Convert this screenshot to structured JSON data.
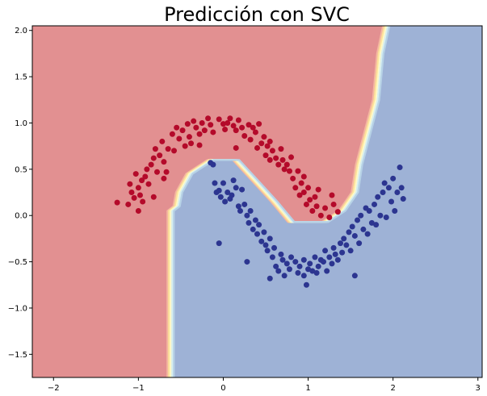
{
  "chart_data": {
    "type": "scatter",
    "title": "Predicción con SVC",
    "xlabel": "",
    "ylabel": "",
    "xlim": [
      -2.25,
      3.05
    ],
    "ylim": [
      -1.75,
      2.05
    ],
    "grid": false,
    "xticks": [
      -2,
      -1,
      0,
      1,
      2,
      3
    ],
    "yticks": [
      -1.5,
      -1.0,
      -0.5,
      0.0,
      0.5,
      1.0,
      1.5,
      2.0
    ],
    "xtick_labels": [
      "−2",
      "−1",
      "0",
      "1",
      "2",
      "3"
    ],
    "ytick_labels": [
      "−1.5",
      "−1.0",
      "−0.5",
      "0.0",
      "0.5",
      "1.0",
      "1.5",
      "2.0"
    ],
    "background": {
      "type": "decision_regions",
      "class_colors": {
        "red": "#e29091",
        "blue": "#9eb2d6"
      },
      "boundary_band_colors": [
        "#f4b8a0",
        "#fde39a",
        "#fff9c8",
        "#d6eef0",
        "#b7d2e6"
      ],
      "boundary": [
        [
          -0.62,
          -1.75
        ],
        [
          -0.62,
          0.05
        ],
        [
          -0.55,
          0.1
        ],
        [
          -0.52,
          0.25
        ],
        [
          -0.4,
          0.45
        ],
        [
          -0.15,
          0.6
        ],
        [
          0.15,
          0.6
        ],
        [
          0.4,
          0.35
        ],
        [
          0.6,
          0.15
        ],
        [
          0.8,
          -0.07
        ],
        [
          1.2,
          -0.07
        ],
        [
          1.4,
          0.05
        ],
        [
          1.55,
          0.25
        ],
        [
          1.6,
          0.55
        ],
        [
          1.7,
          0.9
        ],
        [
          1.8,
          1.25
        ],
        [
          1.85,
          1.75
        ],
        [
          1.92,
          2.05
        ]
      ]
    },
    "series": [
      {
        "color": "#b40a2a",
        "points": [
          [
            -1.25,
            0.14
          ],
          [
            -1.12,
            0.12
          ],
          [
            -1.1,
            0.34
          ],
          [
            -1.08,
            0.25
          ],
          [
            -1.05,
            0.19
          ],
          [
            -1.03,
            0.45
          ],
          [
            -1.0,
            0.3
          ],
          [
            -0.98,
            0.22
          ],
          [
            -0.96,
            0.38
          ],
          [
            -0.92,
            0.42
          ],
          [
            -0.9,
            0.5
          ],
          [
            -0.88,
            0.34
          ],
          [
            -0.85,
            0.55
          ],
          [
            -0.82,
            0.62
          ],
          [
            -0.8,
            0.72
          ],
          [
            -0.78,
            0.47
          ],
          [
            -0.75,
            0.65
          ],
          [
            -0.72,
            0.8
          ],
          [
            -0.7,
            0.58
          ],
          [
            -0.67,
            0.47
          ],
          [
            -0.65,
            0.72
          ],
          [
            -0.6,
            0.88
          ],
          [
            -0.58,
            0.7
          ],
          [
            -0.55,
            0.95
          ],
          [
            -0.52,
            0.83
          ],
          [
            -0.48,
            0.92
          ],
          [
            -0.45,
            0.75
          ],
          [
            -0.42,
            0.99
          ],
          [
            -0.4,
            0.85
          ],
          [
            -0.38,
            0.78
          ],
          [
            -0.35,
            1.02
          ],
          [
            -0.32,
            0.95
          ],
          [
            -0.28,
            0.88
          ],
          [
            -0.25,
            1.0
          ],
          [
            -0.22,
            0.92
          ],
          [
            -0.18,
            1.05
          ],
          [
            -0.15,
            0.98
          ],
          [
            -0.12,
            0.9
          ],
          [
            -0.05,
            1.04
          ],
          [
            0.0,
            0.99
          ],
          [
            0.02,
            0.93
          ],
          [
            0.05,
            1.0
          ],
          [
            0.08,
            1.05
          ],
          [
            0.12,
            0.97
          ],
          [
            0.15,
            0.92
          ],
          [
            0.18,
            1.03
          ],
          [
            0.22,
            0.95
          ],
          [
            0.25,
            0.86
          ],
          [
            0.3,
            0.98
          ],
          [
            0.32,
            0.82
          ],
          [
            0.35,
            0.95
          ],
          [
            0.38,
            0.9
          ],
          [
            0.4,
            0.73
          ],
          [
            0.42,
            0.99
          ],
          [
            0.45,
            0.78
          ],
          [
            0.48,
            0.85
          ],
          [
            0.5,
            0.65
          ],
          [
            0.52,
            0.75
          ],
          [
            0.55,
            0.8
          ],
          [
            0.58,
            0.7
          ],
          [
            0.62,
            0.62
          ],
          [
            0.65,
            0.55
          ],
          [
            0.68,
            0.72
          ],
          [
            0.7,
            0.6
          ],
          [
            0.72,
            0.5
          ],
          [
            0.75,
            0.55
          ],
          [
            0.78,
            0.48
          ],
          [
            0.8,
            0.63
          ],
          [
            0.82,
            0.4
          ],
          [
            0.85,
            0.3
          ],
          [
            0.88,
            0.48
          ],
          [
            0.9,
            0.22
          ],
          [
            0.92,
            0.35
          ],
          [
            0.95,
            0.25
          ],
          [
            0.98,
            0.12
          ],
          [
            1.0,
            0.3
          ],
          [
            1.02,
            0.17
          ],
          [
            1.05,
            0.05
          ],
          [
            1.08,
            0.2
          ],
          [
            1.1,
            0.1
          ],
          [
            1.15,
            0.0
          ],
          [
            1.2,
            0.08
          ],
          [
            1.25,
            -0.02
          ],
          [
            1.3,
            0.12
          ],
          [
            1.35,
            0.04
          ],
          [
            -0.95,
            0.15
          ],
          [
            -0.82,
            0.2
          ],
          [
            -0.7,
            0.4
          ],
          [
            -0.28,
            0.76
          ],
          [
            0.15,
            0.73
          ],
          [
            0.55,
            0.6
          ],
          [
            0.95,
            0.42
          ],
          [
            1.12,
            0.28
          ],
          [
            1.28,
            0.22
          ],
          [
            -1.0,
            0.05
          ]
        ]
      },
      {
        "color": "#2c3590",
        "points": [
          [
            -0.15,
            0.57
          ],
          [
            -0.12,
            0.55
          ],
          [
            -0.1,
            0.35
          ],
          [
            -0.08,
            0.25
          ],
          [
            -0.05,
            0.27
          ],
          [
            -0.03,
            0.2
          ],
          [
            0.0,
            0.35
          ],
          [
            0.02,
            0.15
          ],
          [
            0.05,
            0.25
          ],
          [
            0.08,
            0.18
          ],
          [
            0.1,
            0.22
          ],
          [
            0.12,
            0.38
          ],
          [
            0.15,
            0.3
          ],
          [
            0.18,
            0.1
          ],
          [
            0.2,
            0.05
          ],
          [
            0.22,
            0.28
          ],
          [
            0.25,
            0.12
          ],
          [
            0.28,
            0.0
          ],
          [
            0.3,
            -0.08
          ],
          [
            0.32,
            0.05
          ],
          [
            0.35,
            -0.15
          ],
          [
            0.38,
            -0.05
          ],
          [
            0.4,
            -0.2
          ],
          [
            0.42,
            -0.1
          ],
          [
            0.45,
            -0.28
          ],
          [
            0.48,
            -0.18
          ],
          [
            0.5,
            -0.32
          ],
          [
            0.52,
            -0.38
          ],
          [
            0.55,
            -0.25
          ],
          [
            0.58,
            -0.45
          ],
          [
            0.6,
            -0.35
          ],
          [
            0.62,
            -0.55
          ],
          [
            0.65,
            -0.6
          ],
          [
            0.68,
            -0.42
          ],
          [
            0.7,
            -0.48
          ],
          [
            0.72,
            -0.65
          ],
          [
            0.75,
            -0.52
          ],
          [
            0.78,
            -0.58
          ],
          [
            0.8,
            -0.45
          ],
          [
            0.85,
            -0.5
          ],
          [
            0.88,
            -0.62
          ],
          [
            0.9,
            -0.55
          ],
          [
            0.95,
            -0.48
          ],
          [
            0.98,
            -0.75
          ],
          [
            1.0,
            -0.58
          ],
          [
            1.02,
            -0.52
          ],
          [
            1.05,
            -0.6
          ],
          [
            1.08,
            -0.45
          ],
          [
            1.1,
            -0.62
          ],
          [
            1.12,
            -0.55
          ],
          [
            1.15,
            -0.48
          ],
          [
            1.18,
            -0.5
          ],
          [
            1.2,
            -0.38
          ],
          [
            1.22,
            -0.6
          ],
          [
            1.25,
            -0.45
          ],
          [
            1.28,
            -0.52
          ],
          [
            1.3,
            -0.35
          ],
          [
            1.32,
            -0.42
          ],
          [
            1.35,
            -0.48
          ],
          [
            1.38,
            -0.3
          ],
          [
            1.4,
            -0.4
          ],
          [
            1.42,
            -0.25
          ],
          [
            1.45,
            -0.32
          ],
          [
            1.48,
            -0.18
          ],
          [
            1.5,
            -0.38
          ],
          [
            1.52,
            -0.12
          ],
          [
            1.55,
            -0.22
          ],
          [
            1.58,
            -0.05
          ],
          [
            1.6,
            -0.3
          ],
          [
            1.62,
            0.0
          ],
          [
            1.65,
            -0.15
          ],
          [
            1.68,
            0.08
          ],
          [
            1.7,
            -0.2
          ],
          [
            1.72,
            0.05
          ],
          [
            1.75,
            -0.08
          ],
          [
            1.78,
            0.12
          ],
          [
            1.8,
            -0.1
          ],
          [
            1.82,
            0.2
          ],
          [
            1.85,
            0.0
          ],
          [
            1.88,
            0.25
          ],
          [
            1.9,
            0.35
          ],
          [
            1.92,
            -0.02
          ],
          [
            1.95,
            0.3
          ],
          [
            1.98,
            0.15
          ],
          [
            2.0,
            0.4
          ],
          [
            2.02,
            0.05
          ],
          [
            2.05,
            0.25
          ],
          [
            2.08,
            0.52
          ],
          [
            2.1,
            0.3
          ],
          [
            2.12,
            0.18
          ],
          [
            -0.05,
            -0.3
          ],
          [
            0.28,
            -0.5
          ],
          [
            0.55,
            -0.68
          ],
          [
            0.95,
            -0.65
          ],
          [
            1.55,
            -0.65
          ]
        ]
      }
    ]
  }
}
